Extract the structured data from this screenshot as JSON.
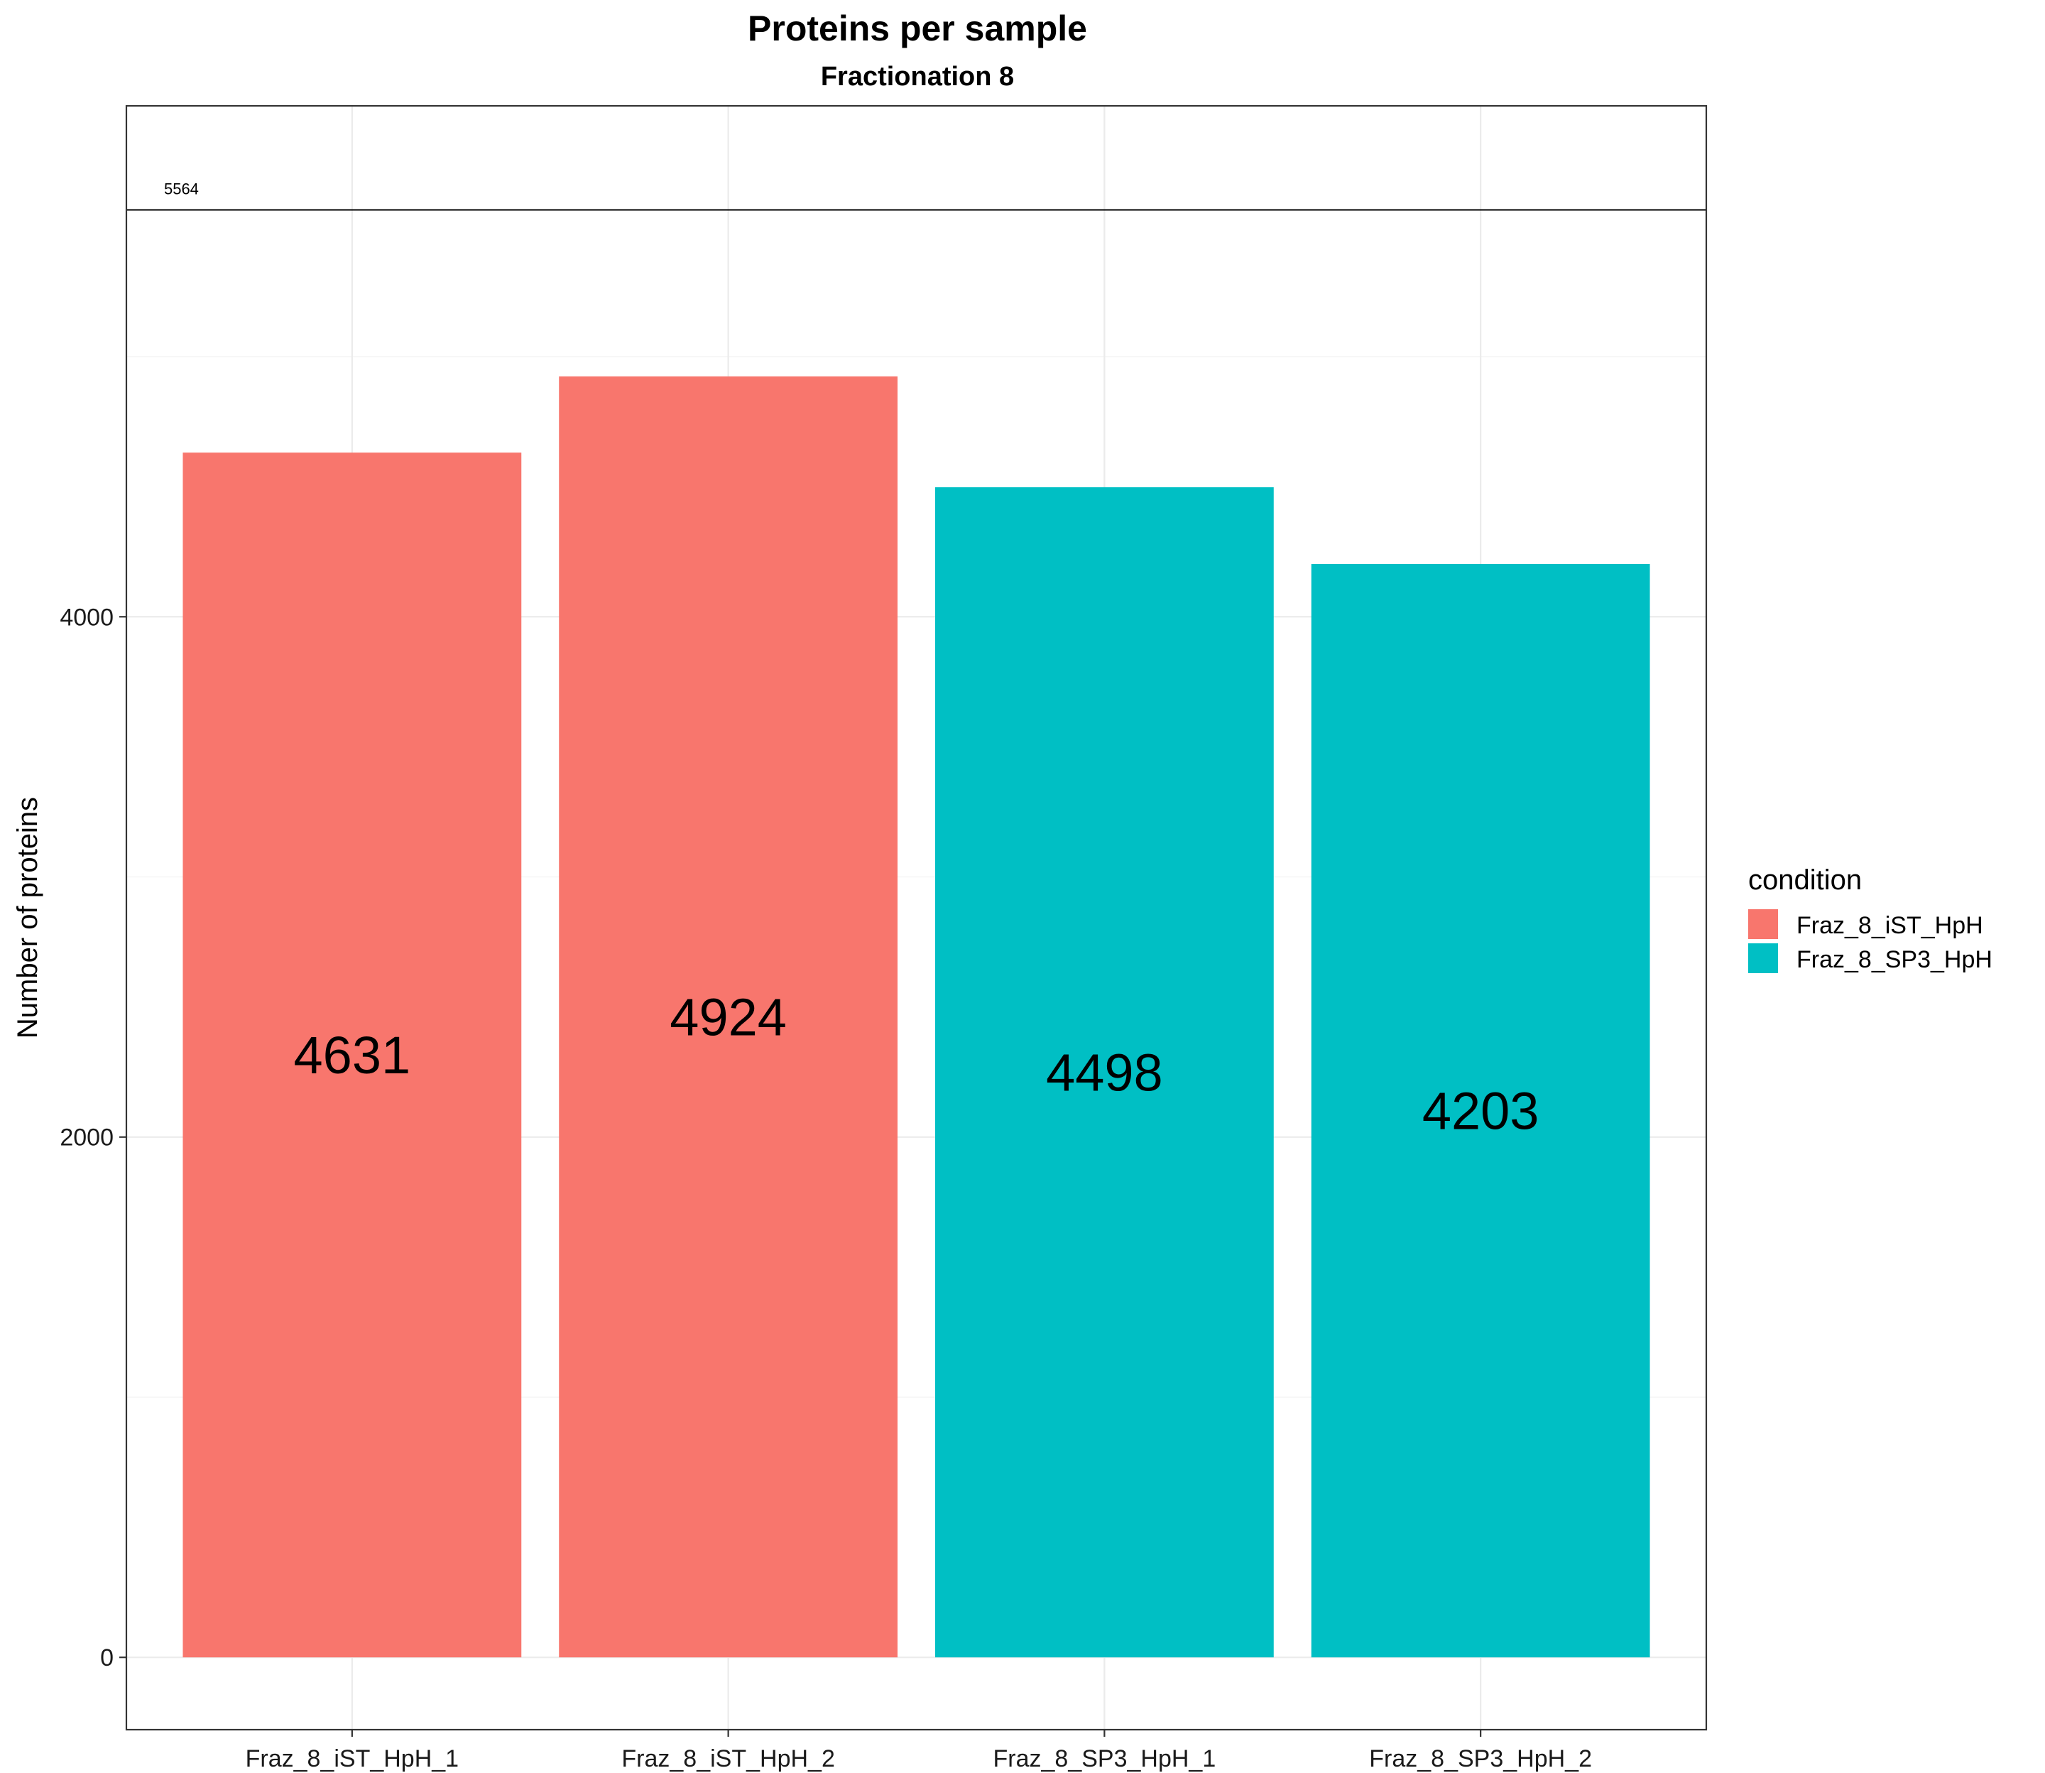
{
  "chart_data": {
    "type": "bar",
    "title": "Proteins per sample",
    "subtitle": "Fractionation 8",
    "xlabel": "",
    "ylabel": "Number of proteins",
    "categories": [
      "Fraz_8_iST_HpH_1",
      "Fraz_8_iST_HpH_2",
      "Fraz_8_SP3_HpH_1",
      "Fraz_8_SP3_HpH_2"
    ],
    "values": [
      4631,
      4924,
      4498,
      4203
    ],
    "data_labels": [
      "4631",
      "4924",
      "4498",
      "4203"
    ],
    "bar_conditions": [
      "Fraz_8_iST_HpH",
      "Fraz_8_iST_HpH",
      "Fraz_8_SP3_HpH",
      "Fraz_8_SP3_HpH"
    ],
    "reference_line": {
      "value": 5564,
      "label": "5564"
    },
    "ylim": [
      -278,
      5964
    ],
    "yticks": [
      0,
      2000,
      4000
    ],
    "ytick_labels": [
      "0",
      "2000",
      "4000"
    ],
    "grid": true,
    "legend": {
      "title": "condition",
      "placement": "right",
      "entries": [
        {
          "label": "Fraz_8_iST_HpH",
          "color": "#F8766D"
        },
        {
          "label": "Fraz_8_SP3_HpH",
          "color": "#00BFC4"
        }
      ]
    },
    "colors": {
      "Fraz_8_iST_HpH": "#F8766D",
      "Fraz_8_SP3_HpH": "#00BFC4"
    }
  }
}
